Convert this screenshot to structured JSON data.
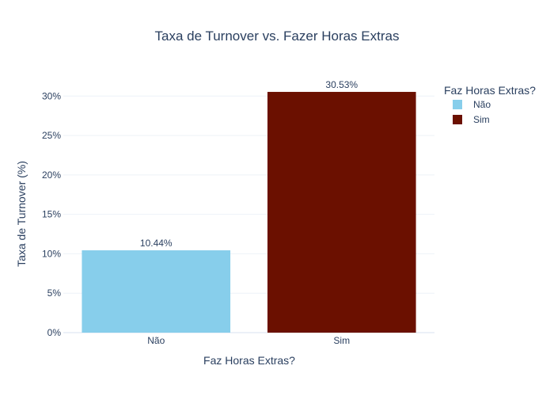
{
  "chart_data": {
    "type": "bar",
    "title": "Taxa de Turnover vs. Fazer Horas Extras",
    "xlabel": "Faz Horas Extras?",
    "ylabel": "Taxa de Turnover (%)",
    "categories": [
      "Não",
      "Sim"
    ],
    "values": [
      10.44,
      30.53
    ],
    "data_labels": [
      "10.44%",
      "30.53%"
    ],
    "colors": [
      "#87ceeb",
      "#6b1000"
    ],
    "ylim": [
      0,
      32.14
    ],
    "yticks": [
      0,
      5,
      10,
      15,
      20,
      25,
      30
    ],
    "ytick_labels": [
      "0%",
      "5%",
      "10%",
      "15%",
      "20%",
      "25%",
      "30%"
    ],
    "grid": true,
    "legend": {
      "title": "Faz Horas Extras?",
      "placement": "right",
      "entries": [
        "Não",
        "Sim"
      ]
    }
  }
}
